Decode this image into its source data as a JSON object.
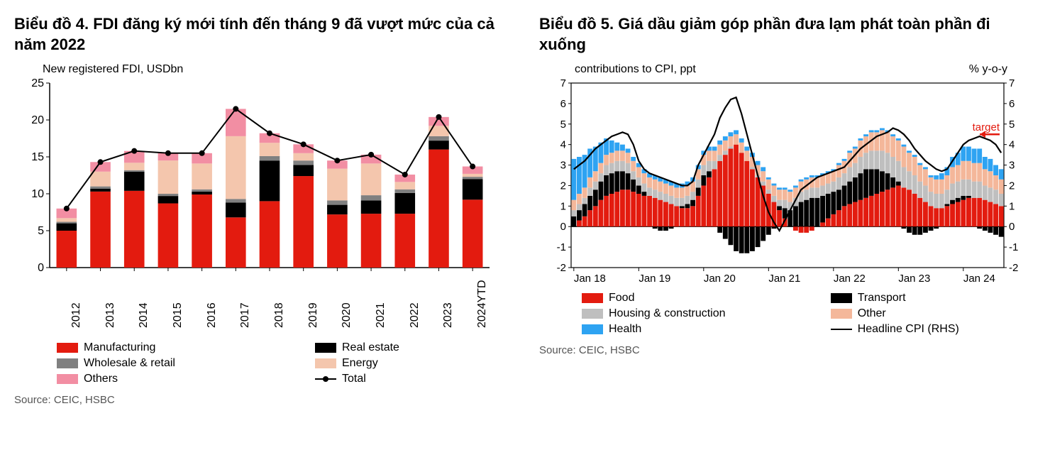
{
  "chart4": {
    "title": "Biểu đồ 4. FDI đăng ký mới tính đến tháng 9 đã vượt mức của cả năm 2022",
    "subtitle": "New registered FDI, USDbn",
    "type": "stacked-bar-with-line",
    "categories": [
      "2012",
      "2013",
      "2014",
      "2015",
      "2016",
      "2017",
      "2018",
      "2019",
      "2020",
      "2021",
      "2022",
      "2023",
      "2024YTD"
    ],
    "series": [
      {
        "name": "Manufacturing",
        "color": "#e31b0f",
        "values": [
          5.0,
          10.3,
          10.4,
          8.7,
          9.9,
          6.8,
          9.0,
          12.4,
          7.2,
          7.3,
          7.3,
          16.0,
          9.2
        ]
      },
      {
        "name": "Real estate",
        "color": "#000000",
        "values": [
          1.0,
          0.4,
          2.6,
          1.0,
          0.4,
          2.0,
          5.5,
          1.5,
          1.3,
          1.8,
          2.8,
          1.2,
          2.8
        ]
      },
      {
        "name": "Wholesale & retail",
        "color": "#808080",
        "values": [
          0.2,
          0.3,
          0.2,
          0.3,
          0.3,
          0.5,
          0.6,
          0.6,
          0.6,
          0.7,
          0.5,
          0.6,
          0.3
        ]
      },
      {
        "name": "Energy",
        "color": "#f4c6ad",
        "values": [
          0.5,
          2.0,
          1.0,
          4.5,
          3.5,
          8.5,
          1.8,
          1.0,
          4.3,
          4.3,
          1.0,
          1.4,
          0.4
        ]
      },
      {
        "name": "Others",
        "color": "#f28ea3",
        "values": [
          1.3,
          1.3,
          1.6,
          1.0,
          1.4,
          3.7,
          1.3,
          1.2,
          1.1,
          1.2,
          1.0,
          1.2,
          1.0
        ]
      }
    ],
    "total_line": {
      "name": "Total",
      "color": "#000000",
      "values": [
        8.0,
        14.3,
        15.8,
        15.5,
        15.5,
        21.5,
        18.2,
        16.7,
        14.5,
        15.3,
        12.6,
        20.4,
        13.7
      ]
    },
    "ylim": [
      0,
      25
    ],
    "ytick_step": 5,
    "background_color": "#ffffff",
    "axis_color": "#000000",
    "bar_width": 0.6,
    "title_fontsize": 22,
    "label_fontsize": 16,
    "legend": [
      {
        "label": "Manufacturing",
        "swatch": "#e31b0f",
        "type": "box"
      },
      {
        "label": "Real estate",
        "swatch": "#000000",
        "type": "box"
      },
      {
        "label": "Wholesale & retail",
        "swatch": "#808080",
        "type": "box"
      },
      {
        "label": "Energy",
        "swatch": "#f4c6ad",
        "type": "box"
      },
      {
        "label": "Others",
        "swatch": "#f28ea3",
        "type": "box"
      },
      {
        "label": "Total",
        "swatch": "#000000",
        "type": "line-marker"
      }
    ],
    "source": "Source: CEIC, HSBC"
  },
  "chart5": {
    "title": "Biểu đồ 5. Giá dầu giảm góp phần đưa lạm phát toàn phần đi xuống",
    "subtitle_left": "contributions to CPI, ppt",
    "subtitle_right": "% y-o-y",
    "type": "stacked-bar-with-line-dual-axis",
    "x_labels": [
      "Jan 18",
      "Jan 19",
      "Jan 20",
      "Jan 21",
      "Jan 22",
      "Jan 23",
      "Jan 24"
    ],
    "n_months": 80,
    "series": [
      {
        "name": "Food",
        "color": "#e31b0f"
      },
      {
        "name": "Transport",
        "color": "#000000"
      },
      {
        "name": "Housing & construction",
        "color": "#bfbfbf"
      },
      {
        "name": "Other",
        "color": "#f4b79a"
      },
      {
        "name": "Health",
        "color": "#2ea3f2"
      }
    ],
    "food": [
      0.0,
      0.3,
      0.5,
      0.8,
      1.0,
      1.3,
      1.5,
      1.6,
      1.7,
      1.8,
      1.8,
      1.7,
      1.6,
      1.5,
      1.5,
      1.4,
      1.3,
      1.2,
      1.1,
      1.0,
      0.9,
      0.9,
      1.0,
      1.5,
      2.0,
      2.4,
      2.8,
      3.2,
      3.5,
      3.8,
      4.0,
      3.6,
      3.2,
      2.8,
      2.4,
      2.0,
      1.6,
      1.2,
      0.8,
      0.4,
      0.0,
      -0.2,
      -0.3,
      -0.3,
      -0.2,
      0.0,
      0.2,
      0.4,
      0.6,
      0.8,
      1.0,
      1.1,
      1.2,
      1.3,
      1.4,
      1.5,
      1.6,
      1.7,
      1.8,
      1.9,
      2.0,
      1.9,
      1.8,
      1.6,
      1.4,
      1.2,
      1.0,
      0.9,
      0.9,
      1.0,
      1.1,
      1.2,
      1.3,
      1.4,
      1.4,
      1.4,
      1.3,
      1.2,
      1.1,
      1.0
    ],
    "transport": [
      0.5,
      0.5,
      0.6,
      0.7,
      0.8,
      0.9,
      1.0,
      1.0,
      1.0,
      0.9,
      0.8,
      0.6,
      0.4,
      0.2,
      0.0,
      -0.1,
      -0.2,
      -0.2,
      -0.1,
      0.0,
      0.1,
      0.2,
      0.3,
      0.4,
      0.5,
      0.3,
      0.0,
      -0.3,
      -0.6,
      -0.9,
      -1.2,
      -1.3,
      -1.3,
      -1.2,
      -1.0,
      -0.7,
      -0.4,
      -0.1,
      0.2,
      0.5,
      0.8,
      1.0,
      1.2,
      1.3,
      1.4,
      1.4,
      1.3,
      1.2,
      1.1,
      1.0,
      1.0,
      1.1,
      1.2,
      1.3,
      1.4,
      1.3,
      1.2,
      1.0,
      0.8,
      0.5,
      0.2,
      -0.1,
      -0.3,
      -0.4,
      -0.4,
      -0.3,
      -0.2,
      -0.1,
      0.0,
      0.1,
      0.2,
      0.2,
      0.2,
      0.1,
      0.0,
      -0.1,
      -0.2,
      -0.3,
      -0.4,
      -0.5
    ],
    "housing": [
      0.3,
      0.3,
      0.3,
      0.4,
      0.4,
      0.4,
      0.5,
      0.5,
      0.5,
      0.5,
      0.5,
      0.4,
      0.4,
      0.4,
      0.4,
      0.4,
      0.4,
      0.4,
      0.4,
      0.4,
      0.4,
      0.4,
      0.4,
      0.4,
      0.5,
      0.5,
      0.4,
      0.3,
      0.2,
      0.1,
      0.0,
      0.0,
      0.0,
      0.1,
      0.1,
      0.2,
      0.2,
      0.3,
      0.3,
      0.4,
      0.4,
      0.4,
      0.5,
      0.5,
      0.5,
      0.5,
      0.5,
      0.5,
      0.5,
      0.6,
      0.6,
      0.7,
      0.7,
      0.8,
      0.8,
      0.9,
      0.9,
      1.0,
      1.0,
      1.0,
      1.0,
      1.0,
      0.9,
      0.9,
      0.8,
      0.8,
      0.7,
      0.7,
      0.7,
      0.7,
      0.8,
      0.8,
      0.8,
      0.8,
      0.8,
      0.8,
      0.7,
      0.7,
      0.7,
      0.6
    ],
    "other": [
      0.5,
      0.5,
      0.5,
      0.5,
      0.5,
      0.5,
      0.5,
      0.5,
      0.5,
      0.5,
      0.5,
      0.5,
      0.5,
      0.5,
      0.5,
      0.5,
      0.5,
      0.5,
      0.5,
      0.5,
      0.5,
      0.5,
      0.5,
      0.5,
      0.5,
      0.5,
      0.5,
      0.5,
      0.5,
      0.5,
      0.5,
      0.5,
      0.5,
      0.5,
      0.5,
      0.5,
      0.5,
      0.5,
      0.5,
      0.5,
      0.5,
      0.5,
      0.5,
      0.5,
      0.5,
      0.5,
      0.5,
      0.5,
      0.5,
      0.6,
      0.6,
      0.7,
      0.7,
      0.8,
      0.8,
      0.9,
      0.9,
      1.0,
      1.0,
      1.0,
      1.0,
      1.0,
      0.9,
      0.9,
      0.8,
      0.8,
      0.7,
      0.7,
      0.7,
      0.7,
      0.8,
      0.8,
      0.9,
      0.9,
      0.9,
      0.9,
      0.8,
      0.8,
      0.7,
      0.7
    ],
    "health": [
      2.0,
      1.8,
      1.6,
      1.4,
      1.2,
      1.0,
      0.8,
      0.6,
      0.4,
      0.3,
      0.2,
      0.2,
      0.2,
      0.2,
      0.2,
      0.2,
      0.2,
      0.2,
      0.2,
      0.2,
      0.2,
      0.2,
      0.2,
      0.2,
      0.2,
      0.2,
      0.2,
      0.2,
      0.2,
      0.2,
      0.2,
      0.2,
      0.2,
      0.2,
      0.2,
      0.2,
      0.1,
      0.1,
      0.1,
      0.1,
      0.1,
      0.1,
      0.1,
      0.1,
      0.1,
      0.1,
      0.1,
      0.1,
      0.1,
      0.1,
      0.1,
      0.1,
      0.1,
      0.1,
      0.1,
      0.1,
      0.1,
      0.1,
      0.1,
      0.1,
      0.1,
      0.1,
      0.1,
      0.1,
      0.1,
      0.1,
      0.1,
      0.2,
      0.3,
      0.4,
      0.5,
      0.6,
      0.7,
      0.7,
      0.7,
      0.7,
      0.6,
      0.6,
      0.5,
      0.5
    ],
    "headline_cpi": [
      2.8,
      3.0,
      3.2,
      3.5,
      3.8,
      4.0,
      4.2,
      4.4,
      4.5,
      4.6,
      4.5,
      4.0,
      3.2,
      2.8,
      2.6,
      2.5,
      2.4,
      2.3,
      2.2,
      2.1,
      2.0,
      2.0,
      2.2,
      3.0,
      3.5,
      4.0,
      4.5,
      5.3,
      5.8,
      6.2,
      6.3,
      5.5,
      4.5,
      3.5,
      2.5,
      1.5,
      0.7,
      0.2,
      -0.2,
      0.3,
      0.8,
      1.3,
      1.8,
      2.0,
      2.2,
      2.4,
      2.5,
      2.6,
      2.7,
      2.8,
      2.9,
      3.2,
      3.5,
      3.8,
      4.0,
      4.2,
      4.4,
      4.5,
      4.6,
      4.8,
      4.7,
      4.5,
      4.2,
      3.8,
      3.5,
      3.2,
      3.0,
      2.8,
      2.7,
      2.8,
      3.2,
      3.6,
      4.0,
      4.2,
      4.3,
      4.4,
      4.3,
      4.2,
      4.0,
      3.6
    ],
    "target_value": 4.5,
    "target_label": "target",
    "ylim_left": [
      -2,
      7
    ],
    "ytick_step_left": 1,
    "ylim_right": [
      -2,
      7
    ],
    "ytick_step_right": 1,
    "background_color": "#ffffff",
    "axis_color": "#000000",
    "grid_color": "#cccccc",
    "legend": [
      {
        "label": "Food",
        "swatch": "#e31b0f",
        "type": "box"
      },
      {
        "label": "Transport",
        "swatch": "#000000",
        "type": "box"
      },
      {
        "label": "Housing & construction",
        "swatch": "#bfbfbf",
        "type": "box"
      },
      {
        "label": "Other",
        "swatch": "#f4b79a",
        "type": "box"
      },
      {
        "label": "Health",
        "swatch": "#2ea3f2",
        "type": "box"
      },
      {
        "label": "Headline CPI (RHS)",
        "swatch": "#000000",
        "type": "thin-line"
      }
    ],
    "source": "Source: CEIC, HSBC"
  }
}
